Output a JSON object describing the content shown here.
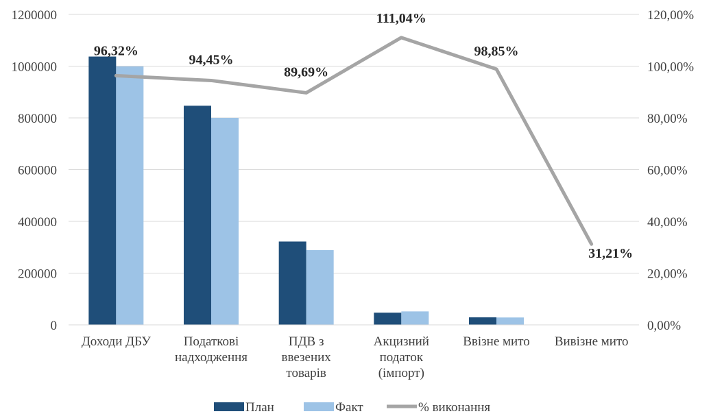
{
  "chart_data": {
    "type": "bar",
    "categories": [
      [
        "Доходи ДБУ"
      ],
      [
        "Податкові",
        "надходження"
      ],
      [
        "ПДВ з",
        "ввезених",
        "товарів"
      ],
      [
        "Акцизний",
        "податок",
        "(імпорт)"
      ],
      [
        "Ввізне мито"
      ],
      [
        "Вивізне мито"
      ]
    ],
    "series": [
      {
        "name": "План",
        "type": "bar",
        "axis": "left",
        "color": "#1f4e79",
        "values": [
          1037000,
          847000,
          322000,
          47000,
          29000,
          0
        ]
      },
      {
        "name": "Факт",
        "type": "bar",
        "axis": "left",
        "color": "#9dc3e6",
        "values": [
          999000,
          800000,
          289000,
          52000,
          28500,
          0
        ]
      },
      {
        "name": "% виконання",
        "type": "line",
        "axis": "right",
        "color": "#a5a5a5",
        "values": [
          96.32,
          94.45,
          89.69,
          111.04,
          98.85,
          31.21
        ],
        "labels": [
          "96,32%",
          "94,45%",
          "89,69%",
          "111,04%",
          "98,85%",
          "31,21%"
        ]
      }
    ],
    "y_left": {
      "ylim": [
        0,
        1200000
      ],
      "ticks": [
        0,
        200000,
        400000,
        600000,
        800000,
        1000000,
        1200000
      ],
      "tick_labels": [
        "0",
        "200000",
        "400000",
        "600000",
        "800000",
        "1000000",
        "1200000"
      ]
    },
    "y_right": {
      "ylim": [
        0,
        120
      ],
      "ticks": [
        0,
        20,
        40,
        60,
        80,
        100,
        120
      ],
      "tick_labels": [
        "0,00%",
        "20,00%",
        "40,00%",
        "60,00%",
        "80,00%",
        "100,00%",
        "120,00%"
      ]
    },
    "grid": true,
    "legend": {
      "position": "bottom",
      "entries": [
        "План",
        "Факт",
        "% виконання"
      ]
    }
  }
}
